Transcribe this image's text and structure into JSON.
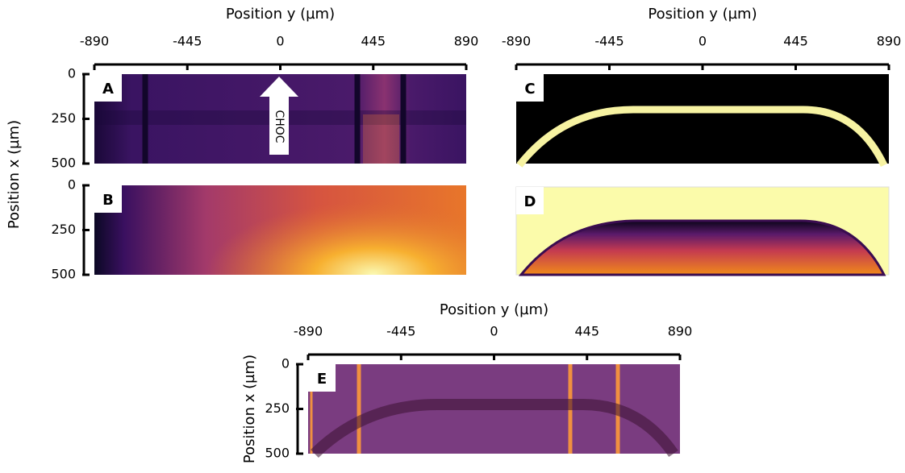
{
  "groups": [
    {
      "x_label": "Position y (µm)",
      "xlim": [
        -890,
        890
      ],
      "xticks": [
        -890,
        -445,
        0,
        445,
        890
      ],
      "y_label": "Position x (µm)",
      "ylim": [
        0,
        500
      ],
      "yticks": [
        0,
        250,
        500
      ],
      "panels": [
        {
          "label": "A",
          "annotation": "CHOC"
        },
        {
          "label": "B"
        }
      ]
    },
    {
      "x_label": "Position y (µm)",
      "xlim": [
        -890,
        890
      ],
      "xticks": [
        -890,
        -445,
        0,
        445,
        890
      ],
      "panels": [
        {
          "label": "C"
        },
        {
          "label": "D"
        }
      ]
    },
    {
      "x_label": "Position y (µm)",
      "xlim": [
        -890,
        890
      ],
      "xticks": [
        -890,
        -445,
        0,
        445,
        890
      ],
      "y_label": "Position x (µm)",
      "ylim": [
        0,
        500
      ],
      "yticks": [
        0,
        250,
        500
      ],
      "panels": [
        {
          "label": "E"
        }
      ]
    }
  ]
}
